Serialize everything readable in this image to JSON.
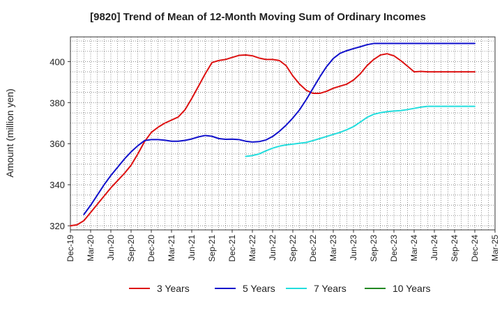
{
  "chart_data": {
    "type": "line",
    "title": "[9820]  Trend of Mean of 12-Month Moving Sum of Ordinary Incomes",
    "xlabel": "",
    "ylabel": "Amount (million yen)",
    "ylim": [
      318,
      412
    ],
    "yticks": [
      320,
      340,
      360,
      380,
      400
    ],
    "x_tick_labels": [
      "Dec-19",
      "Mar-20",
      "Jun-20",
      "Sep-20",
      "Dec-20",
      "Mar-21",
      "Jun-21",
      "Sep-21",
      "Dec-21",
      "Mar-22",
      "Jun-22",
      "Sep-22",
      "Dec-22",
      "Mar-23",
      "Jun-23",
      "Sep-23",
      "Dec-23",
      "Mar-24",
      "Jun-24",
      "Sep-24",
      "Dec-24",
      "Mar-25"
    ],
    "x_start": "Dec-19",
    "x_unit": "months since Dec-19",
    "x_range": [
      0,
      63
    ],
    "grid": true,
    "legend_position": "bottom",
    "series": [
      {
        "name": "3 Years",
        "color": "#dd1111",
        "x": [
          0,
          1,
          2,
          3,
          4,
          5,
          6,
          7,
          8,
          9,
          10,
          11,
          12,
          13,
          14,
          15,
          16,
          17,
          18,
          19,
          20,
          21,
          22,
          23,
          24,
          25,
          26,
          27,
          28,
          29,
          30,
          31,
          32,
          33,
          34,
          35,
          36,
          37,
          38,
          39,
          40,
          41,
          42,
          43,
          44,
          45,
          46,
          47,
          48,
          49,
          50,
          51,
          52,
          53,
          54,
          55,
          56,
          57,
          58,
          59,
          60
        ],
        "values": [
          320.0,
          320.5,
          322.5,
          326.5,
          330.5,
          334.5,
          338.5,
          342.0,
          345.5,
          349.5,
          355.0,
          361.0,
          365.5,
          368.0,
          370.0,
          371.5,
          373.0,
          376.5,
          382.0,
          388.0,
          394.0,
          399.5,
          400.5,
          401.0,
          402.0,
          403.0,
          403.2,
          402.8,
          401.7,
          401.0,
          401.0,
          400.5,
          398.0,
          393.0,
          389.0,
          386.0,
          384.5,
          384.5,
          385.5,
          387.0,
          388.0,
          389.0,
          391.0,
          394.0,
          398.0,
          401.0,
          403.2,
          403.8,
          402.8,
          400.5,
          397.8,
          395.0,
          395.2,
          395.0,
          395.0,
          395.0,
          395.0,
          395.0,
          395.0,
          395.0,
          395.0
        ]
      },
      {
        "name": "5 Years",
        "color": "#1111cc",
        "x": [
          2,
          3,
          4,
          5,
          6,
          7,
          8,
          9,
          10,
          11,
          12,
          13,
          14,
          15,
          16,
          17,
          18,
          19,
          20,
          21,
          22,
          23,
          24,
          25,
          26,
          27,
          28,
          29,
          30,
          31,
          32,
          33,
          34,
          35,
          36,
          37,
          38,
          39,
          40,
          41,
          42,
          43,
          44,
          45,
          46,
          47,
          48,
          49,
          50,
          51,
          52,
          53,
          54,
          55,
          56,
          57,
          58,
          59,
          60
        ],
        "values": [
          325.5,
          330.0,
          335.0,
          340.0,
          344.5,
          348.5,
          352.5,
          356.0,
          359.0,
          361.5,
          362.0,
          362.0,
          361.7,
          361.2,
          361.2,
          361.6,
          362.3,
          363.3,
          364.0,
          363.6,
          362.5,
          362.1,
          362.2,
          362.0,
          361.2,
          360.8,
          361.0,
          361.8,
          363.5,
          366.0,
          369.0,
          372.5,
          376.5,
          381.5,
          387.0,
          392.5,
          397.5,
          401.5,
          404.0,
          405.3,
          406.3,
          407.2,
          408.2,
          408.8,
          408.8,
          408.8,
          408.8,
          408.8,
          408.8,
          408.8,
          408.8,
          408.8,
          408.8,
          408.8,
          408.8,
          408.8,
          408.8,
          408.8,
          408.8
        ]
      },
      {
        "name": "7 Years",
        "color": "#22dddd",
        "x": [
          26,
          27,
          28,
          29,
          30,
          31,
          32,
          33,
          34,
          35,
          36,
          37,
          38,
          39,
          40,
          41,
          42,
          43,
          44,
          45,
          46,
          47,
          48,
          49,
          50,
          51,
          52,
          53,
          54,
          55,
          56,
          57,
          58,
          59,
          60
        ],
        "values": [
          353.8,
          354.2,
          355.0,
          356.5,
          357.8,
          358.8,
          359.4,
          359.8,
          360.2,
          360.6,
          361.5,
          362.5,
          363.5,
          364.5,
          365.5,
          366.8,
          368.3,
          370.5,
          372.8,
          374.3,
          375.1,
          375.6,
          375.9,
          376.1,
          376.6,
          377.2,
          377.8,
          378.2,
          378.2,
          378.2,
          378.2,
          378.2,
          378.2,
          378.2,
          378.2
        ]
      },
      {
        "name": "10 Years",
        "color": "#228822",
        "x": [],
        "values": []
      }
    ]
  }
}
